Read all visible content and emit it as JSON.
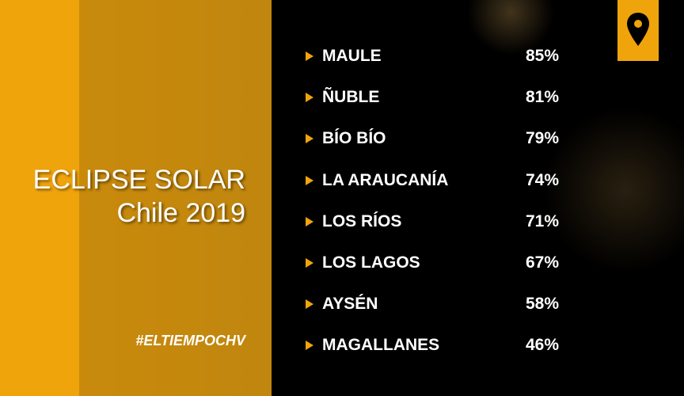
{
  "header": {
    "title": "ECLIPSE SOLAR",
    "subtitle": "Chile 2019",
    "hashtag": "#ELTIEMPOCHV"
  },
  "table": {
    "rows": [
      [
        "MAULE",
        "85%"
      ],
      [
        "ÑUBLE",
        "81%"
      ],
      [
        "BÍO BÍO",
        "79%"
      ],
      [
        "LA ARAUCANÍA",
        "74%"
      ],
      [
        "LOS RÍOS",
        "71%"
      ],
      [
        "LOS LAGOS",
        "67%"
      ],
      [
        "AYSÉN",
        "58%"
      ],
      [
        "MAGALLANES",
        "46%"
      ]
    ]
  }
}
